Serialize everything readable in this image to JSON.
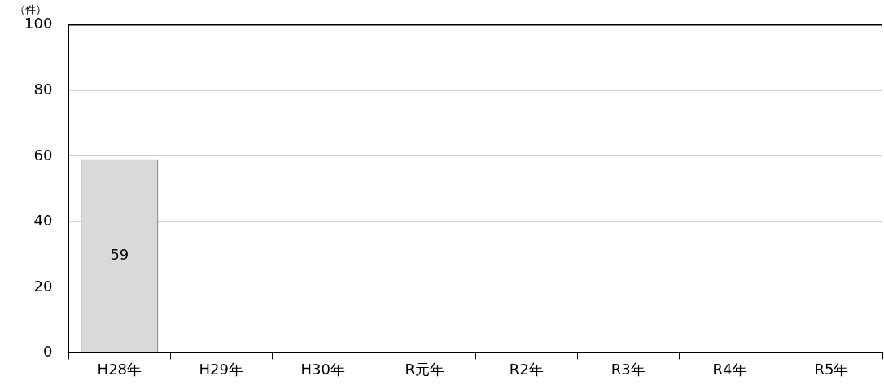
{
  "chart_data": {
    "type": "bar",
    "ylabel": "（件）",
    "categories": [
      "H28年",
      "H29年",
      "H30年",
      "R元年",
      "R2年",
      "R3年",
      "R4年",
      "R5年"
    ],
    "values": [
      59,
      null,
      null,
      null,
      null,
      null,
      null,
      null
    ],
    "value_labels": [
      "59",
      null,
      null,
      null,
      null,
      null,
      null,
      null
    ],
    "color": "#d9d9d9",
    "ylim": [
      0,
      100
    ],
    "yticks": [
      0,
      20,
      40,
      60,
      80,
      100
    ],
    "grid": "y",
    "legend": false
  }
}
